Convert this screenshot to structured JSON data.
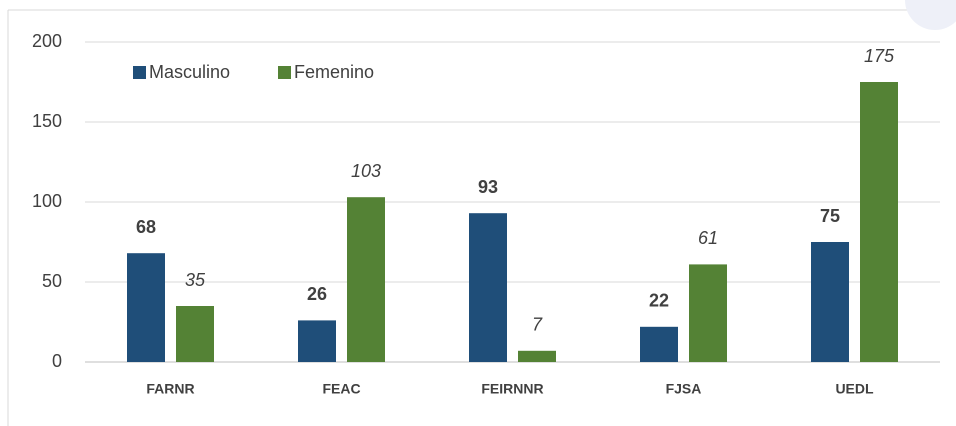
{
  "chart_data": {
    "type": "bar",
    "categories": [
      "FARNR",
      "FEAC",
      "FEIRNNR",
      "FJSA",
      "UEDL"
    ],
    "series": [
      {
        "name": "Masculino",
        "color": "#1f4e79",
        "values": [
          68,
          26,
          93,
          22,
          75
        ]
      },
      {
        "name": "Femenino",
        "color": "#548235",
        "values": [
          35,
          103,
          7,
          61,
          175
        ]
      }
    ],
    "ylim": [
      0,
      200
    ],
    "yticks": [
      0,
      50,
      100,
      150,
      200
    ],
    "grid": true,
    "legend": "top-left"
  }
}
